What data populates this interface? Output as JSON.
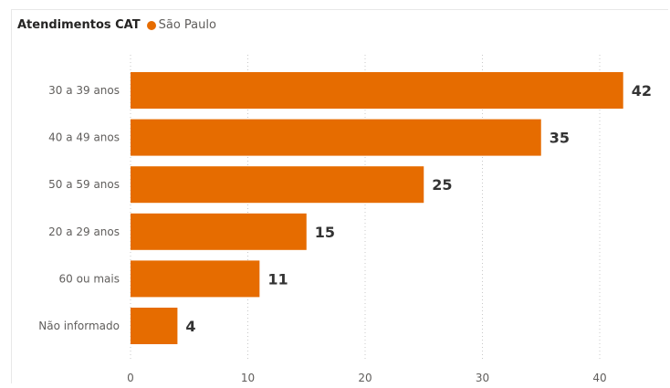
{
  "header": {
    "title": "Atendimentos CAT",
    "legend_label": "São Paulo"
  },
  "colors": {
    "bar": "#E66C00",
    "grid": "#c8c8c8"
  },
  "chart_data": {
    "type": "bar",
    "orientation": "horizontal",
    "title": "Atendimentos CAT",
    "categories": [
      "30 a 39 anos",
      "40 a 49 anos",
      "50 a 59 anos",
      "20 a 29 anos",
      "60 ou mais",
      "Não informado"
    ],
    "series": [
      {
        "name": "São Paulo",
        "values": [
          42,
          35,
          25,
          15,
          11,
          4
        ]
      }
    ],
    "xlim": [
      0,
      45
    ],
    "xticks": [
      0,
      10,
      20,
      30,
      40
    ],
    "data_labels": true,
    "grid": true,
    "legend_position": "top"
  }
}
